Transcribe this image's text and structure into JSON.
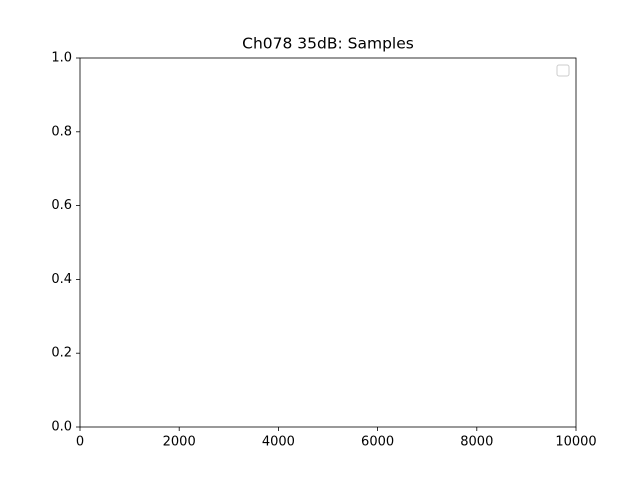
{
  "chart_data": {
    "type": "line",
    "title": "Ch078 35dB: Samples",
    "series": [],
    "xlim": [
      0,
      10000
    ],
    "xticks": [
      0,
      2000,
      4000,
      6000,
      8000,
      10000
    ],
    "ylim": [
      0,
      1
    ],
    "yticks": [
      {
        "value": 0,
        "label": "0.0"
      },
      {
        "value": 0.2,
        "label": "0.2"
      },
      {
        "value": 0.4,
        "label": "0.4"
      },
      {
        "value": 0.6,
        "label": "0.6"
      },
      {
        "value": 0.8,
        "label": "0.8"
      },
      {
        "value": 1,
        "label": "1.0"
      }
    ],
    "grid": false,
    "legend": "upper right"
  }
}
